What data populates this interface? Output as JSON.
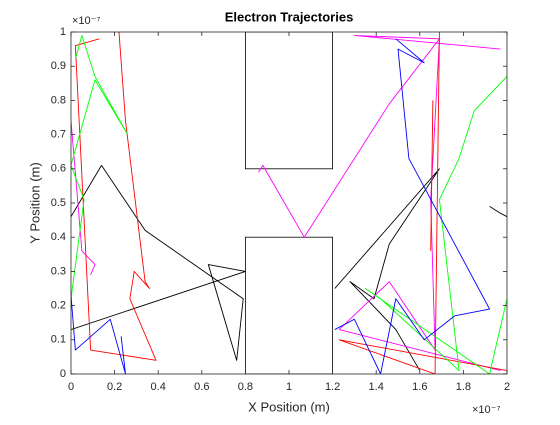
{
  "chart_data": {
    "type": "line",
    "title": "Electron Trajectories",
    "x_label": "X Position (m)",
    "y_label": "Y Position (m)",
    "x_exponent": "×10⁻⁷",
    "y_exponent": "×10⁻⁷",
    "xlim": [
      0,
      2
    ],
    "ylim": [
      0,
      1
    ],
    "xticks": [
      0,
      0.2,
      0.4,
      0.6,
      0.8,
      1,
      1.2,
      1.4,
      1.6,
      1.8,
      2
    ],
    "yticks": [
      0,
      0.1,
      0.2,
      0.3,
      0.4,
      0.5,
      0.6,
      0.7,
      0.8,
      0.9,
      1
    ],
    "grid": false,
    "regions": [
      {
        "x": [
          0.8,
          1.2
        ],
        "y": [
          0.6,
          1
        ]
      },
      {
        "x": [
          0.8,
          1.2
        ],
        "y": [
          0,
          0.4
        ]
      }
    ],
    "series": [
      {
        "color": "#000000",
        "x": [
          0,
          0.8,
          0.63,
          0.76,
          0.79,
          0.34,
          0.14,
          0
        ],
        "values": [
          0.13,
          0.3,
          0.32,
          0.04,
          0.22,
          0.42,
          0.61,
          0.46
        ]
      },
      {
        "color": "#000000",
        "x": [
          1.21,
          1.69,
          1.46,
          1.39,
          1.28,
          1.49,
          1.6
        ],
        "values": [
          0.25,
          0.6,
          0.38,
          0.22,
          0.27,
          0.13,
          0.01
        ]
      },
      {
        "color": "#000000",
        "x": [
          1.92,
          1.97,
          2
        ],
        "values": [
          0.49,
          0.47,
          0.46
        ]
      },
      {
        "color": "#ff00ff",
        "x": [
          0.86,
          0.88,
          1.07,
          1.46,
          1.69,
          1.3,
          1.97
        ],
        "values": [
          0.59,
          0.61,
          0.4,
          0.79,
          0.98,
          0.99,
          0.95
        ]
      },
      {
        "color": "#ff00ff",
        "x": [
          0,
          0.05,
          0.11,
          0.09
        ],
        "values": [
          0.74,
          0.36,
          0.32,
          0.29
        ]
      },
      {
        "color": "#ff00ff",
        "x": [
          1.69,
          1.65,
          1.67,
          1.46,
          1.23,
          1.97
        ],
        "values": [
          0.98,
          0.51,
          0.07,
          0.27,
          0.13,
          0.01
        ]
      },
      {
        "color": "#ff0000",
        "x": [
          0.22,
          0.25,
          0.34,
          0.36,
          0.29,
          0.27,
          0.39,
          0.09,
          0.02,
          0.13
        ],
        "values": [
          1,
          0.74,
          0.27,
          0.25,
          0.3,
          0.22,
          0.04,
          0.07,
          0.96,
          0.98
        ]
      },
      {
        "color": "#ff0000",
        "x": [
          1.69,
          1.67,
          1.23,
          2
        ],
        "values": [
          1,
          0,
          0.1,
          0.01
        ]
      },
      {
        "color": "#ff0000",
        "x": [
          1.66,
          1.65
        ],
        "values": [
          0.8,
          0.36
        ]
      },
      {
        "color": "#00ff00",
        "x": [
          0.02,
          0.05,
          0.11,
          0.26,
          0.11,
          0,
          0.06,
          0
        ],
        "values": [
          0.92,
          0.99,
          0.87,
          0.7,
          0.86,
          0.61,
          0.51,
          0.22
        ]
      },
      {
        "color": "#00ff00",
        "x": [
          2,
          1.85,
          1.78,
          1.69,
          1.78,
          1.42,
          1.35,
          1.92,
          2
        ],
        "values": [
          0.87,
          0.77,
          0.63,
          0.51,
          0.01,
          0.22,
          0.25,
          0,
          0.22
        ]
      },
      {
        "color": "#0000ff",
        "x": [
          0,
          0.02,
          0.18,
          0.25,
          0.23
        ],
        "values": [
          0.23,
          0.07,
          0.16,
          0,
          0.11
        ]
      },
      {
        "color": "#0000ff",
        "x": [
          1.49,
          1.62,
          1.5,
          1.55,
          1.92,
          1.76,
          1.62,
          1.49,
          1.42,
          1.3,
          1.21
        ],
        "values": [
          0.98,
          0.91,
          0.95,
          0.63,
          0.19,
          0.17,
          0.1,
          0.22,
          0,
          0.16,
          0.13
        ]
      }
    ]
  }
}
